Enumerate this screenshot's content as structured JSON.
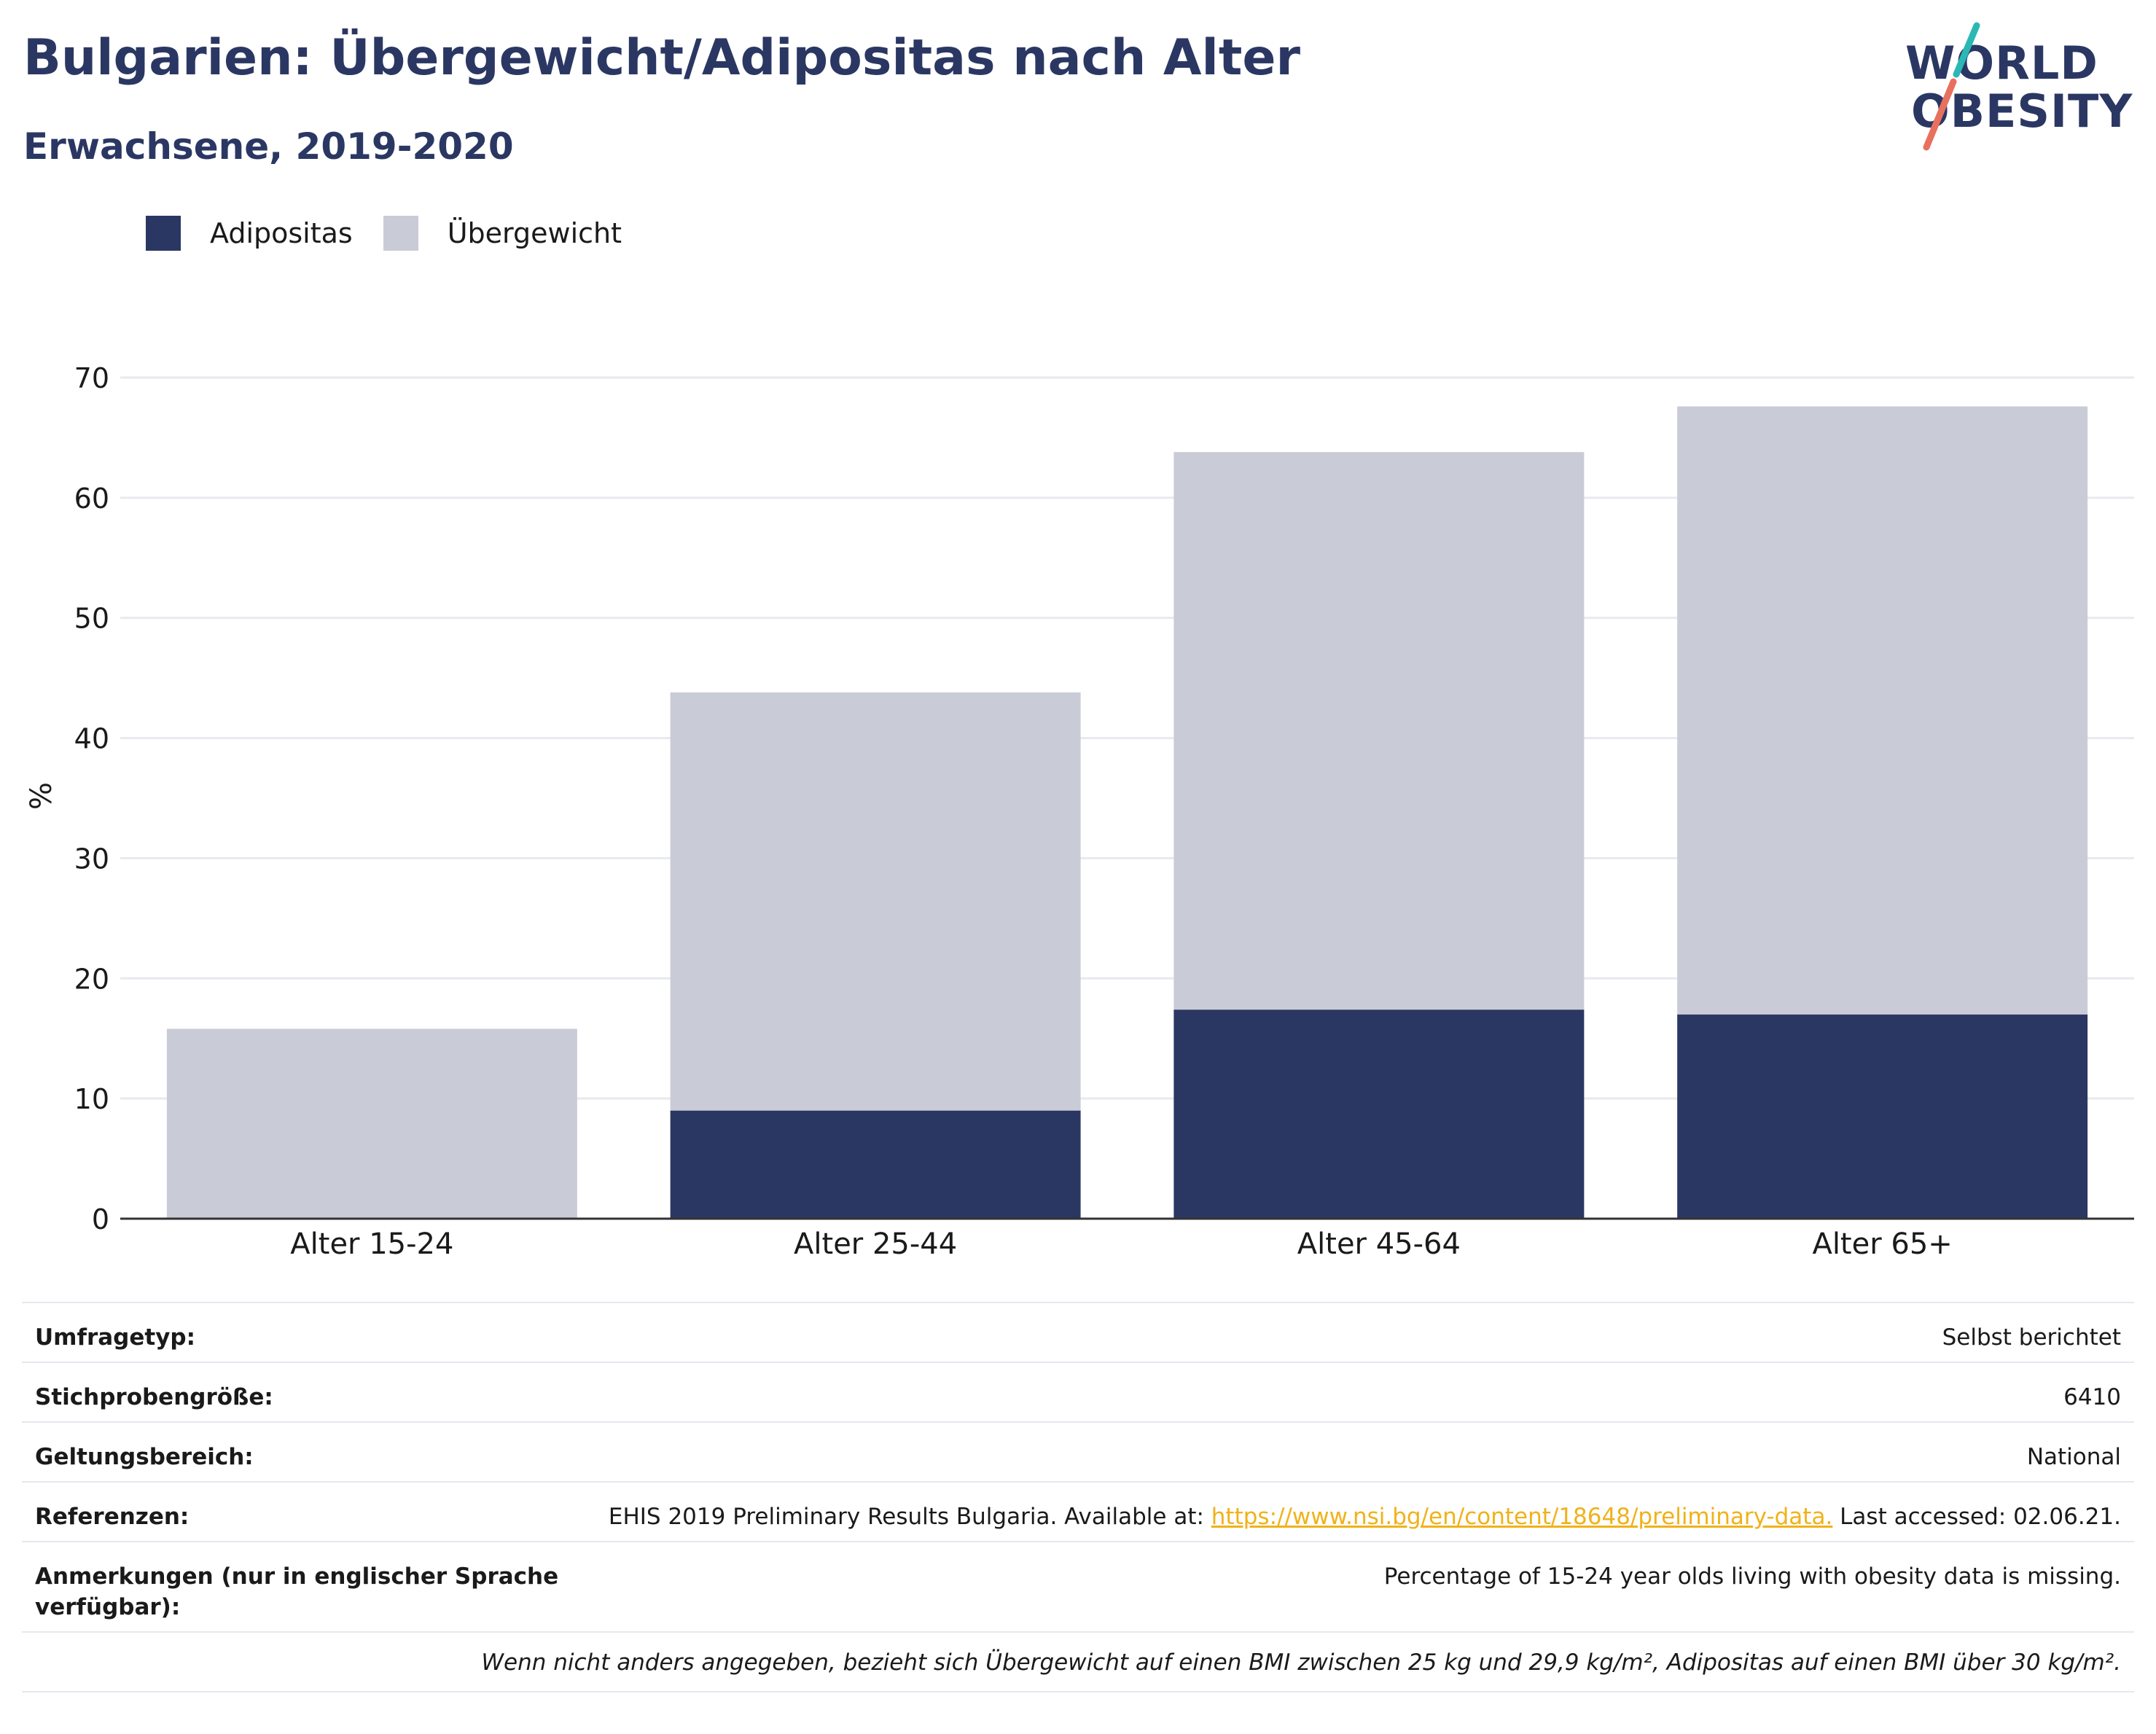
{
  "header": {
    "title": "Bulgarien: Übergewicht/Adipositas nach Alter",
    "subtitle": "Erwachsene, 2019-2020"
  },
  "logo": {
    "line1": "WORLD",
    "line2": "OBESITY",
    "slash_color_top": "#2bb8b5",
    "slash_color_bottom": "#e8705f"
  },
  "legend": [
    {
      "label": "Adipositas",
      "color": "#2b3763"
    },
    {
      "label": "Übergewicht",
      "color": "#c9ccd7"
    }
  ],
  "chart_data": {
    "type": "bar",
    "stacked": true,
    "categories": [
      "Alter 15-24",
      "Alter 25-44",
      "Alter 45-64",
      "Alter 65+"
    ],
    "series": [
      {
        "name": "Adipositas",
        "values": [
          null,
          9,
          17.4,
          17
        ],
        "color": "#2b3763"
      },
      {
        "name": "Übergewicht",
        "values": [
          15.8,
          34.8,
          46.4,
          50.6
        ],
        "color": "#c9ccd7"
      }
    ],
    "ylabel": "%",
    "ylim": [
      0,
      70
    ],
    "yticks": [
      0,
      10,
      20,
      30,
      40,
      50,
      60,
      70
    ],
    "grid": true,
    "legend_position": "top-left"
  },
  "info": {
    "rows": [
      {
        "label": "Umfragetyp:",
        "value": "Selbst berichtet"
      },
      {
        "label": "Stichprobengröße:",
        "value": "6410"
      },
      {
        "label": "Geltungsbereich:",
        "value": "National"
      },
      {
        "label": "Referenzen:",
        "value_before": "EHIS 2019 Preliminary Results Bulgaria. Available at: ",
        "link": "https://www.nsi.bg/en/content/18648/preliminary-data.",
        "value_after": " Last accessed: 02.06.21."
      },
      {
        "label": "Anmerkungen (nur in englischer Sprache verfügbar):",
        "value": "Percentage of 15-24 year olds living with obesity data is missing."
      }
    ],
    "footnote": "Wenn nicht anders angegeben, bezieht sich Übergewicht auf einen BMI zwischen 25 kg und 29,9 kg/m², Adipositas auf einen BMI über 30 kg/m²."
  }
}
